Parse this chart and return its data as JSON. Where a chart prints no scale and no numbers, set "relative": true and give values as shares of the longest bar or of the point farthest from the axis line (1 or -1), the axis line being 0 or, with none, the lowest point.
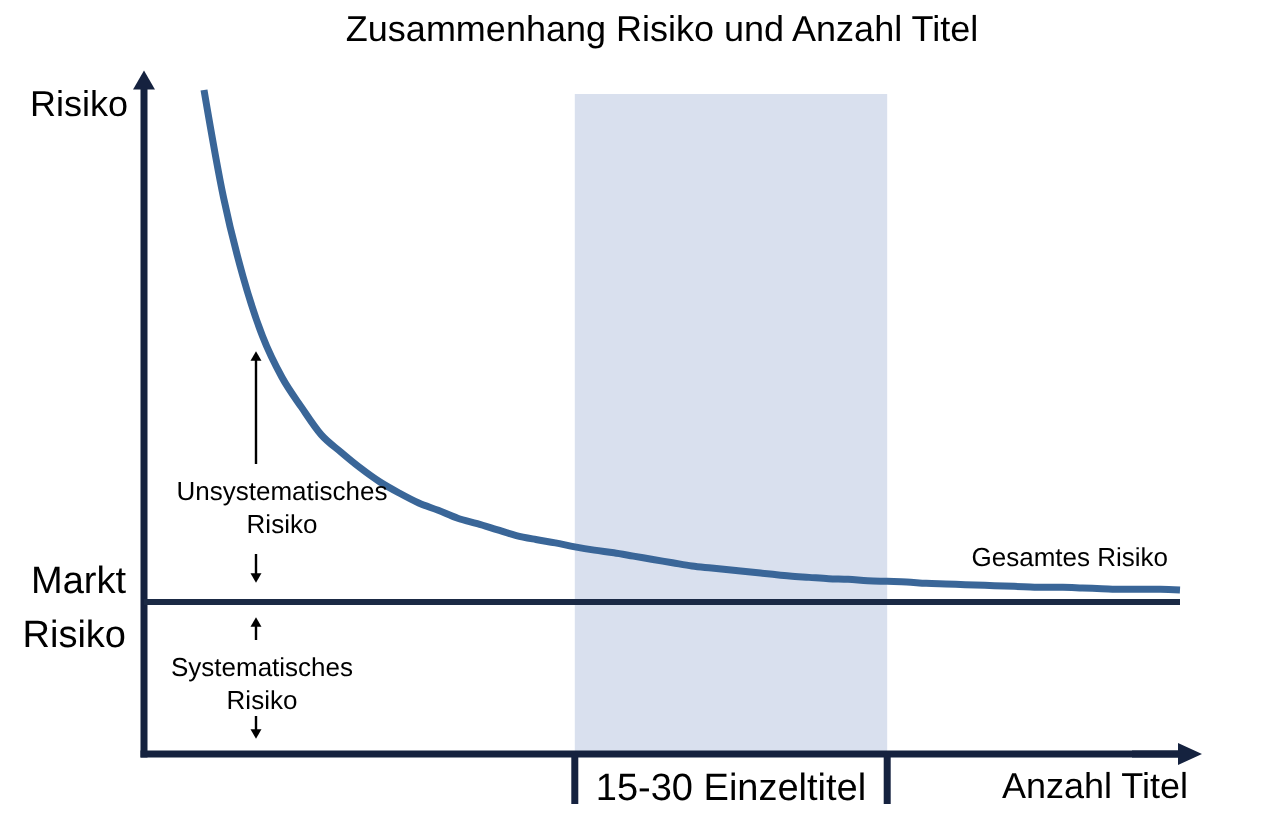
{
  "chart_data": {
    "type": "line",
    "title": "Zusammenhang Risiko und Anzahl Titel",
    "xlabel": "Anzahl Titel",
    "ylabel": "Risiko",
    "relative": true,
    "grid": false,
    "legend": false,
    "marker": "none",
    "line_style": "solid",
    "categories": [
      null,
      null,
      null,
      null,
      null,
      null,
      null,
      null,
      null,
      null,
      null,
      null,
      null,
      null,
      null,
      null,
      null,
      null,
      null,
      null,
      null,
      null,
      null,
      null,
      null,
      null,
      null,
      null,
      null,
      null,
      null,
      null,
      null,
      null,
      null,
      null,
      null,
      null,
      null,
      null,
      null,
      null,
      null,
      null,
      null,
      null,
      null,
      null,
      null,
      null,
      null
    ],
    "series": [
      {
        "name": "Gesamtes Risiko",
        "color": "#3a6698",
        "values": [
          1,
          0.838,
          0.719,
          0.629,
          0.567,
          0.522,
          0.481,
          0.455,
          0.431,
          0.41,
          0.393,
          0.378,
          0.367,
          0.355,
          0.347,
          0.338,
          0.329,
          0.323,
          0.318,
          0.312,
          0.307,
          0.303,
          0.298,
          0.293,
          0.288,
          0.283,
          0.28,
          0.277,
          0.274,
          0.271,
          0.268,
          0.266,
          0.264,
          0.263,
          0.261,
          0.26,
          0.259,
          0.257,
          0.256,
          0.255,
          0.254,
          0.253,
          0.252,
          0.251,
          0.251,
          0.25,
          0.249,
          0.248,
          0.248,
          0.248,
          0.247
        ]
      }
    ],
    "ref_lines": [
      {
        "axis": "y",
        "value": 0.229,
        "label": "Markt Risiko",
        "color": "#1b2a45",
        "line_style": "solid"
      }
    ],
    "annotations": [
      "Unsystematisches Risiko",
      "Systematisches Risiko",
      "15-30 Einzeltitel"
    ]
  }
}
